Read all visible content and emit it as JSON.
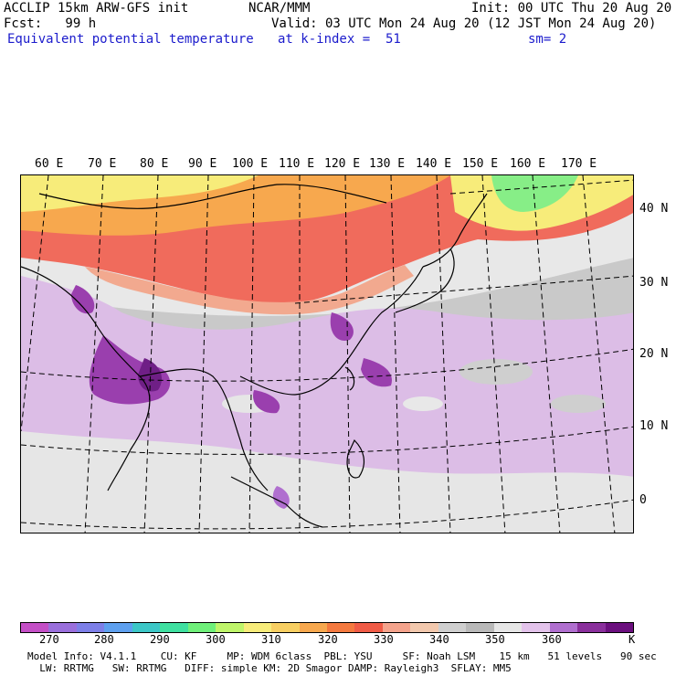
{
  "header": {
    "model": "ACCLIP 15km ARW-GFS init",
    "center": "NCAR/MMM",
    "init": "Init: 00 UTC Thu 20 Aug 20",
    "fcst": "Fcst:   99 h",
    "valid": "Valid: 03 UTC Mon 24 Aug 20 (12 JST Mon 24 Aug 20)",
    "field": "Equivalent potential temperature",
    "level": "at k-index =  51",
    "smooth": "sm= 2"
  },
  "map": {
    "lon_labels": [
      "60 E",
      "70 E",
      "80 E",
      "90 E",
      "100 E",
      "110 E",
      "120 E",
      "130 E",
      "140 E",
      "150 E",
      "160 E",
      "170 E"
    ],
    "lat_labels": [
      "40 N",
      "30 N",
      "20 N",
      "10 N",
      "0"
    ],
    "colors": {
      "cold": "#f06b5c",
      "warm": "#f6c99a",
      "mid": "#bfbfbf",
      "pale": "#e8e8e8",
      "lilac": "#d6b3e0",
      "purple": "#9a3fae",
      "dark": "#6f1f86",
      "yellow": "#f7ec7a",
      "green": "#87ee87"
    }
  },
  "colorbar": {
    "colors": [
      "#c44fc6",
      "#9a6fdc",
      "#7d7fe8",
      "#5ea0ef",
      "#3cc7c7",
      "#3fe0a0",
      "#6ff07a",
      "#bff56a",
      "#f7ec7a",
      "#f8cf62",
      "#f7a84e",
      "#f4793f",
      "#f05b46",
      "#f4a38c",
      "#f2c8ad",
      "#cfcfcf",
      "#b9b9b9",
      "#e6e6e6",
      "#e3c3eb",
      "#b06fcf",
      "#8a2f9c",
      "#6b0f7e"
    ],
    "labels": [
      "270",
      "280",
      "290",
      "300",
      "310",
      "320",
      "330",
      "340",
      "350",
      "360"
    ],
    "unit": "K"
  },
  "footer": {
    "line1": "Model Info: V4.1.1    CU: KF     MP: WDM 6class  PBL: YSU     SF: Noah LSM    15 km   51 levels   90 sec",
    "line2": "  LW: RRTMG   SW: RRTMG   DIFF: simple KM: 2D Smagor DAMP: Rayleigh3  SFLAY: MM5"
  }
}
